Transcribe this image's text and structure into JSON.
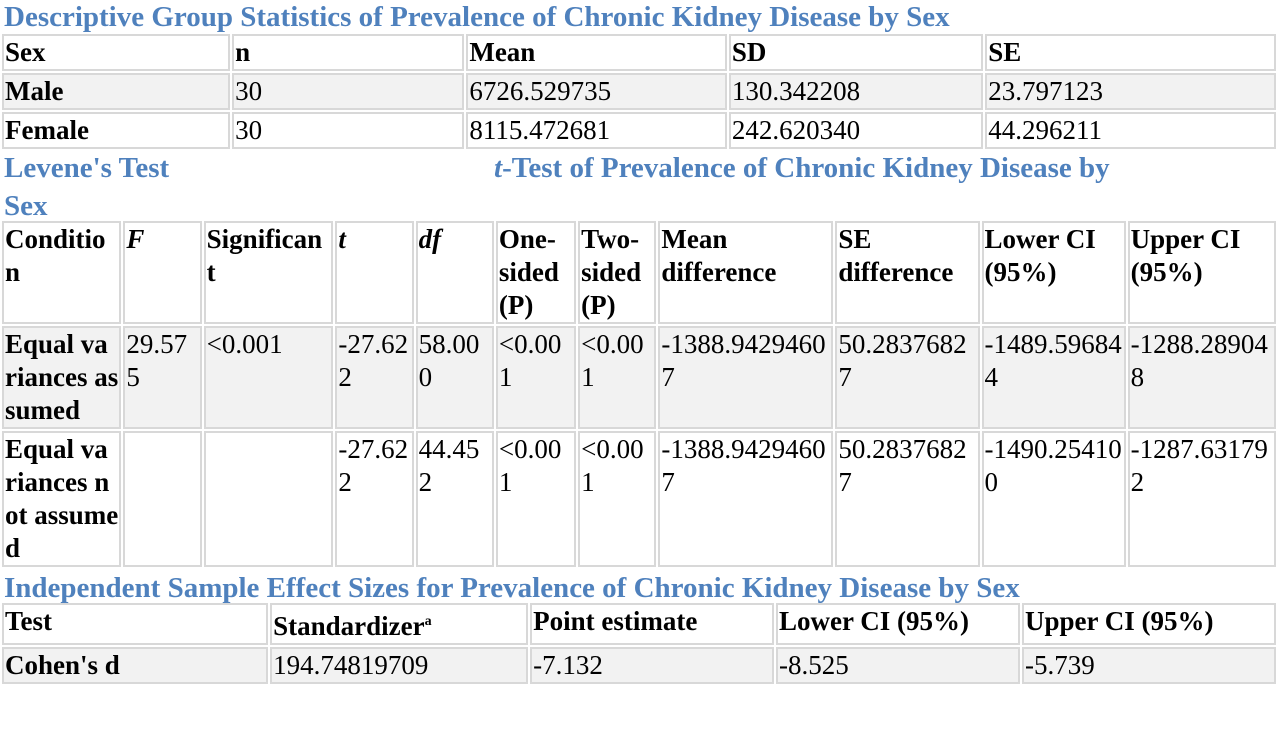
{
  "section1": {
    "title": "Descriptive Group Statistics of Prevalence of Chronic Kidney Disease by Sex",
    "headers": [
      "Sex",
      "n",
      "Mean",
      "SD",
      "SE"
    ],
    "rows": [
      [
        "Male",
        "30",
        "6726.529735",
        "130.342208",
        "23.797123"
      ],
      [
        "Female",
        "30",
        "8115.472681",
        "242.620340",
        "44.296211"
      ]
    ]
  },
  "section2": {
    "title_left": "Levene's Test",
    "title_t": "t",
    "title_right": "-Test of Prevalence of Chronic Kidney Disease by",
    "title_wrap": "Sex",
    "headers": [
      "Condition",
      "F",
      "Significant",
      "t",
      "df",
      "One-sided (P)",
      "Two-sided (P)",
      "Mean difference",
      "SE difference",
      "Lower CI (95%)",
      "Upper CI (95%)"
    ],
    "rows": [
      [
        "Equal variances assumed",
        "29.575",
        "<0.001",
        "-27.622",
        "58.000",
        "<0.001",
        "<0.001",
        "-1388.94294607",
        "50.28376827",
        "-1489.596844",
        "-1288.289048"
      ],
      [
        "Equal variances not assumed",
        "",
        "",
        "-27.622",
        "44.452",
        "<0.001",
        "<0.001",
        "-1388.94294607",
        "50.28376827",
        "-1490.254100",
        "-1287.631792"
      ]
    ]
  },
  "section3": {
    "title": "Independent Sample Effect Sizes for Prevalence of Chronic Kidney Disease by Sex",
    "headers": [
      "Test",
      "Standardizer",
      "Point estimate",
      "Lower CI (95%)",
      "Upper CI (95%)"
    ],
    "standardizer_footnote": "a",
    "rows": [
      [
        "Cohen's d",
        "194.74819709",
        "-7.132",
        "-8.525",
        "-5.739"
      ]
    ]
  }
}
